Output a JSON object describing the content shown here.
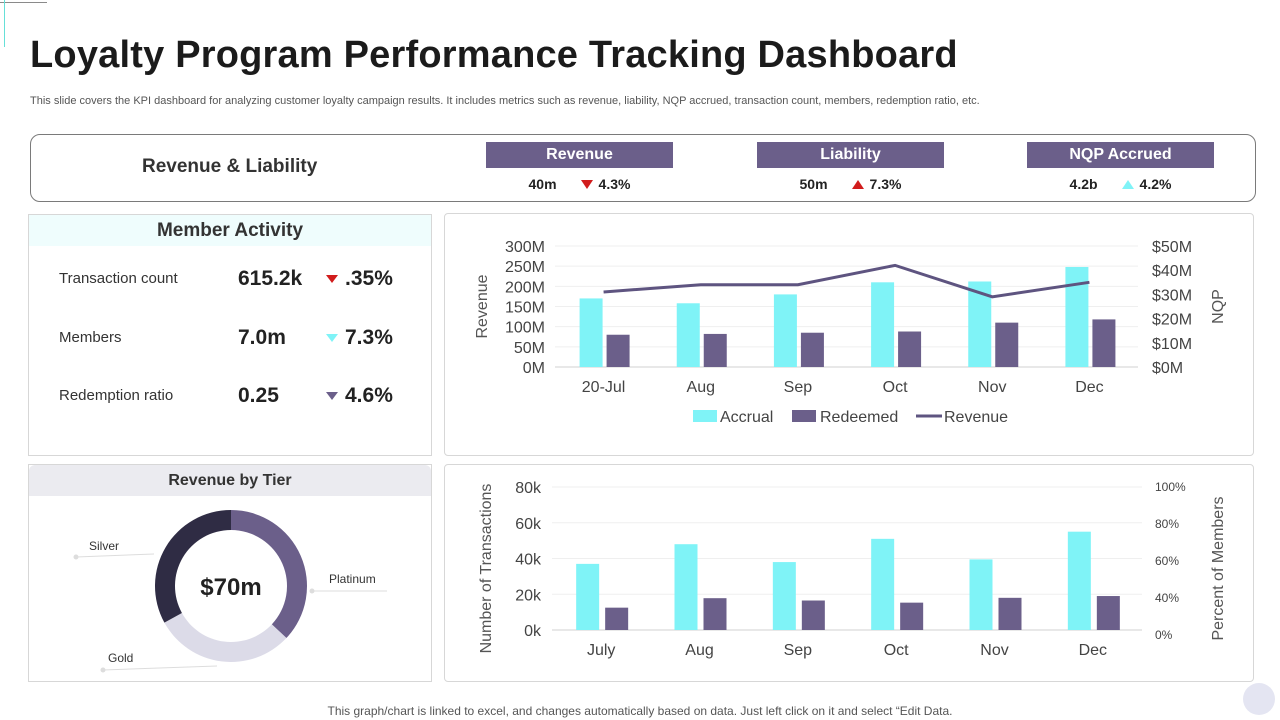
{
  "title": "Loyalty Program Performance Tracking Dashboard",
  "subtitle": "This slide covers the KPI dashboard for analyzing customer loyalty campaign results. It includes metrics such as revenue, liability, NQP accrued, transaction count, members, redemption ratio, etc.",
  "kpi": {
    "heading": "Revenue & Liability",
    "items": [
      {
        "label": "Revenue",
        "value": "40m",
        "change": "4.3%",
        "direction": "down",
        "color": "#d11c1c"
      },
      {
        "label": "Liability",
        "value": "50m",
        "change": "7.3%",
        "direction": "up",
        "color": "#d11c1c"
      },
      {
        "label": "NQP Accrued",
        "value": "4.2b",
        "change": "4.2%",
        "direction": "up",
        "color": "#7ff3f7"
      }
    ]
  },
  "member_activity": {
    "title": "Member Activity",
    "rows": [
      {
        "label": "Transaction count",
        "value": "615.2k",
        "change": ".35%",
        "indicator": "down-red"
      },
      {
        "label": "Members",
        "value": "7.0m",
        "change": "7.3%",
        "indicator": "down-cyan"
      },
      {
        "label": "Redemption ratio",
        "value": "0.25",
        "change": "4.6%",
        "indicator": "down-purple"
      }
    ]
  },
  "revenue_by_tier": {
    "title": "Revenue by Tier",
    "center_label": "$70m"
  },
  "colors": {
    "accent_purple": "#6b5f8a",
    "accrual_cyan": "#7ff3f7",
    "redeemed_purple": "#6b5f8a",
    "revenue_line": "#5e5480",
    "dark_navy": "#2f2c44",
    "light_lavender": "#dcdbe8",
    "down_red": "#d11c1c"
  },
  "chart_data": [
    {
      "type": "pie",
      "title": "Revenue by Tier",
      "center_label": "$70m",
      "slices": [
        {
          "name": "Platinum",
          "value": 37,
          "color": "#6b5f8a"
        },
        {
          "name": "Gold",
          "value": 30,
          "color": "#dcdbe8"
        },
        {
          "name": "Silver",
          "value": 33,
          "color": "#2f2c44"
        }
      ]
    },
    {
      "type": "bar",
      "categories": [
        "20-Jul",
        "Aug",
        "Sep",
        "Oct",
        "Nov",
        "Dec"
      ],
      "series": [
        {
          "name": "Accrual",
          "type": "bar",
          "axis": "left",
          "values": [
            170,
            158,
            180,
            210,
            212,
            248
          ]
        },
        {
          "name": "Redeemed",
          "type": "bar",
          "axis": "left",
          "values": [
            80,
            82,
            85,
            88,
            110,
            118
          ]
        },
        {
          "name": "Revenue",
          "type": "line",
          "axis": "right",
          "values": [
            31,
            34,
            34,
            42,
            29,
            35
          ]
        }
      ],
      "ylabel": "Revenue",
      "y2label": "NQP",
      "ylim": [
        0,
        300
      ],
      "y2lim": [
        0,
        50
      ],
      "yticks": [
        "0M",
        "50M",
        "100M",
        "150M",
        "200M",
        "250M",
        "300M"
      ],
      "y2ticks": [
        "$0M",
        "$10M",
        "$20M",
        "$30M",
        "$40M",
        "$50M"
      ],
      "legend": [
        "Accrual",
        "Redeemed",
        "Revenue"
      ],
      "legend_position": "bottom"
    },
    {
      "type": "bar",
      "categories": [
        "July",
        "Aug",
        "Sep",
        "Oct",
        "Nov",
        "Dec"
      ],
      "series": [
        {
          "name": "Transactions",
          "values": [
            37000,
            48000,
            38000,
            51000,
            39500,
            55000
          ]
        },
        {
          "name": "Members",
          "values": [
            12500,
            17800,
            16500,
            15300,
            18000,
            19000
          ]
        }
      ],
      "ylabel": "Number of Transactions",
      "y2label": "Percent of Members",
      "ylim": [
        0,
        80000
      ],
      "y2lim": [
        0,
        100
      ],
      "yticks": [
        "0k",
        "20k",
        "40k",
        "60k",
        "80k"
      ],
      "y2ticks": [
        "0%",
        "40%",
        "60%",
        "80%",
        "100%"
      ]
    }
  ],
  "footer": "This graph/chart is linked to excel,  and changes automatically based on data. Just left click on it and select “Edit Data."
}
